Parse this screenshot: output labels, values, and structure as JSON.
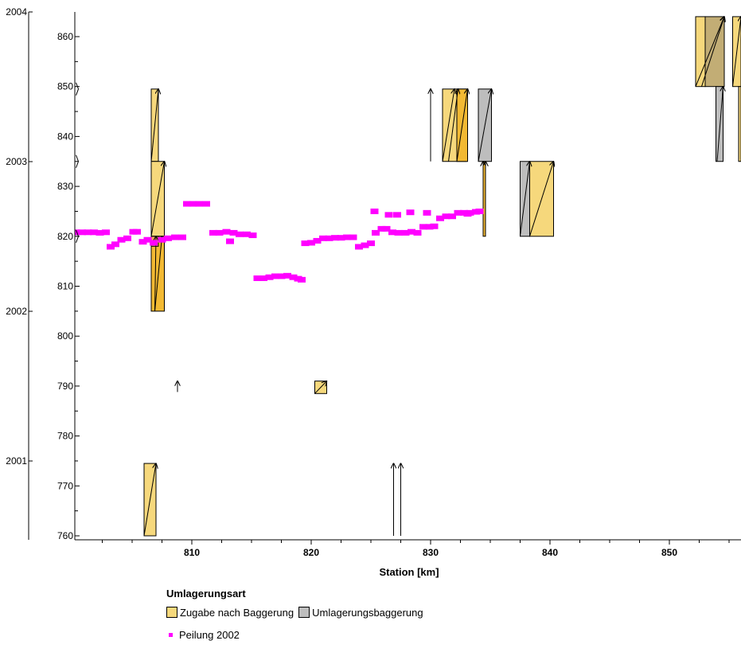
{
  "chart_data": {
    "type": "scatter",
    "xlabel": "Station [km]",
    "x_ticks": [
      810,
      820,
      830,
      840,
      850
    ],
    "xlim": [
      800.2,
      856.0
    ],
    "y_left_ticks": [
      "2001",
      "2002",
      "2003",
      "2004"
    ],
    "y_left_values": [
      2001,
      2002,
      2003,
      2004
    ],
    "y_right_ticks": [
      760,
      770,
      780,
      790,
      800,
      810,
      820,
      830,
      840,
      850,
      860
    ],
    "ylim": [
      760,
      864
    ],
    "colors": {
      "zugabe": "#f6d87c",
      "zugabe_dark": "#f2b933",
      "umlagerung": "#bdbdbd",
      "umlagerung_tan": "#c2ad75",
      "overlap": "#f2a060",
      "peilung": "#ff00ff"
    },
    "boxes": [
      {
        "x0": 806.6,
        "x1": 807.2,
        "y0": 835,
        "y1": 849.5,
        "kind": "zugabe"
      },
      {
        "x0": 806.6,
        "x1": 807.7,
        "y0": 820,
        "y1": 835,
        "kind": "zugabe"
      },
      {
        "x0": 806.6,
        "x1": 807.7,
        "y0": 805,
        "y1": 820,
        "kind": "zugabe_dark"
      },
      {
        "x0": 806.6,
        "x1": 807.2,
        "y0": 818,
        "y1": 820,
        "kind": "overlap"
      },
      {
        "x0": 831.0,
        "x1": 833.0,
        "y0": 835,
        "y1": 849.5,
        "kind": "zugabe"
      },
      {
        "x0": 832.2,
        "x1": 833.1,
        "y0": 835,
        "y1": 849.5,
        "kind": "zugabe_dark"
      },
      {
        "x0": 834.0,
        "x1": 835.1,
        "y0": 835,
        "y1": 849.5,
        "kind": "umlagerung"
      },
      {
        "x0": 834.4,
        "x1": 834.6,
        "y0": 820,
        "y1": 835,
        "kind": "zugabe_dark"
      },
      {
        "x0": 837.5,
        "x1": 838.3,
        "y0": 820,
        "y1": 835,
        "kind": "umlagerung"
      },
      {
        "x0": 838.3,
        "x1": 840.3,
        "y0": 820,
        "y1": 835,
        "kind": "zugabe"
      },
      {
        "x0": 820.3,
        "x1": 821.3,
        "y0": 788.5,
        "y1": 791,
        "kind": "zugabe"
      },
      {
        "x0": 806.0,
        "x1": 807.0,
        "y0": 760,
        "y1": 774.5,
        "kind": "zugabe"
      },
      {
        "x0": 852.2,
        "x1": 853.0,
        "y0": 850,
        "y1": 864,
        "kind": "zugabe"
      },
      {
        "x0": 853.0,
        "x1": 854.6,
        "y0": 850,
        "y1": 864,
        "kind": "umlagerung_tan"
      },
      {
        "x0": 855.3,
        "x1": 856.0,
        "y0": 850,
        "y1": 864,
        "kind": "zugabe"
      },
      {
        "x0": 853.9,
        "x1": 854.5,
        "y0": 835,
        "y1": 850,
        "kind": "umlagerung"
      },
      {
        "x0": 855.8,
        "x1": 856.0,
        "y0": 835,
        "y1": 850,
        "kind": "zugabe"
      }
    ],
    "arrows": [
      {
        "x0": 806.6,
        "y0": 835,
        "x1": 807.2,
        "y1": 849.5
      },
      {
        "x0": 806.6,
        "y0": 820,
        "x1": 807.7,
        "y1": 835
      },
      {
        "x0": 806.9,
        "y0": 805,
        "x1": 807.5,
        "y1": 820
      },
      {
        "x0": 806.9,
        "y0": 805,
        "x1": 807.0,
        "y1": 820
      },
      {
        "x0": 806.0,
        "y0": 760,
        "x1": 807.0,
        "y1": 774.5
      },
      {
        "x0": 830.0,
        "y0": 835,
        "x1": 830.0,
        "y1": 849.5
      },
      {
        "x0": 831.0,
        "y0": 835,
        "x1": 832.0,
        "y1": 849.5
      },
      {
        "x0": 831.5,
        "y0": 835,
        "x1": 832.3,
        "y1": 849.5
      },
      {
        "x0": 832.2,
        "y0": 835,
        "x1": 833.1,
        "y1": 849.5
      },
      {
        "x0": 834.0,
        "y0": 835,
        "x1": 835.1,
        "y1": 849.5
      },
      {
        "x0": 834.4,
        "y0": 820,
        "x1": 834.4,
        "y1": 835
      },
      {
        "x0": 834.6,
        "y0": 820,
        "x1": 834.6,
        "y1": 835
      },
      {
        "x0": 837.5,
        "y0": 820,
        "x1": 838.3,
        "y1": 835
      },
      {
        "x0": 838.3,
        "y0": 820,
        "x1": 840.3,
        "y1": 835
      },
      {
        "x0": 808.8,
        "y0": 788.8,
        "x1": 808.8,
        "y1": 791
      },
      {
        "x0": 820.3,
        "y0": 788.5,
        "x1": 821.3,
        "y1": 791
      },
      {
        "x0": 826.9,
        "y0": 760,
        "x1": 826.9,
        "y1": 774.5
      },
      {
        "x0": 827.5,
        "y0": 760,
        "x1": 827.5,
        "y1": 774.5
      },
      {
        "x0": 852.2,
        "y0": 850,
        "x1": 854.6,
        "y1": 864
      },
      {
        "x0": 852.7,
        "y0": 850,
        "x1": 854.6,
        "y1": 864
      },
      {
        "x0": 855.3,
        "y0": 850,
        "x1": 856.0,
        "y1": 864
      },
      {
        "x0": 854.0,
        "y0": 835,
        "x1": 854.5,
        "y1": 850
      }
    ],
    "right_arrowheads": [
      {
        "x": 800.5,
        "y": 849.5
      },
      {
        "x": 800.5,
        "y": 835
      },
      {
        "x": 800.5,
        "y": 820
      }
    ],
    "series": [
      {
        "name": "Peilung 2002",
        "x": [
          800.3,
          800.8,
          801.3,
          801.8,
          802.3,
          802.8,
          803.2,
          803.6,
          804.1,
          804.6,
          805.1,
          805.4,
          805.9,
          806.3,
          806.8,
          807.5,
          808.0,
          808.6,
          809.2,
          809.6,
          810.1,
          810.6,
          811.2,
          811.8,
          812.3,
          812.9,
          813.5,
          814.0,
          814.6,
          815.1,
          815.5,
          816.0,
          816.5,
          817.0,
          817.5,
          818.0,
          818.5,
          818.9,
          819.2,
          819.5,
          820.0,
          820.5,
          821.0,
          821.5,
          822.0,
          822.5,
          823.0,
          823.5,
          824.0,
          824.5,
          825.0,
          825.4,
          825.9,
          826.3,
          826.8,
          827.3,
          827.9,
          828.4,
          828.9,
          829.4,
          829.9,
          830.3,
          830.8,
          831.3,
          831.8,
          832.3,
          832.8,
          833.3,
          833.8,
          834.1,
          825.3,
          826.5,
          827.2,
          828.3,
          829.7,
          833.1,
          813.2
        ],
        "y": [
          820.8,
          820.8,
          820.8,
          820.8,
          820.7,
          820.8,
          817.9,
          818.4,
          819.3,
          819.6,
          820.9,
          820.9,
          818.9,
          819.3,
          818.7,
          819.3,
          819.6,
          819.8,
          819.8,
          826.5,
          826.5,
          826.5,
          826.5,
          820.7,
          820.7,
          820.9,
          820.7,
          820.4,
          820.4,
          820.2,
          811.6,
          811.6,
          811.8,
          812.0,
          812.0,
          812.1,
          811.8,
          811.5,
          811.3,
          818.6,
          818.7,
          819.1,
          819.6,
          819.6,
          819.7,
          819.7,
          819.8,
          819.8,
          817.9,
          818.2,
          818.6,
          820.7,
          821.5,
          821.5,
          820.8,
          820.7,
          820.7,
          820.9,
          820.7,
          821.9,
          821.9,
          822.0,
          823.6,
          824.0,
          824.0,
          824.7,
          824.7,
          824.7,
          824.9,
          825.0,
          825.0,
          824.3,
          824.3,
          824.8,
          824.7,
          824.5,
          819.0
        ]
      }
    ]
  },
  "legend": {
    "title": "Umlagerungsart",
    "items": [
      {
        "label": "Zugabe nach Baggerung",
        "color": "#f6d87c"
      },
      {
        "label": "Umlagerungsbaggerung",
        "color": "#bdbdbd"
      }
    ],
    "points_label": "Peilung 2002",
    "points_color": "#ff00ff"
  }
}
